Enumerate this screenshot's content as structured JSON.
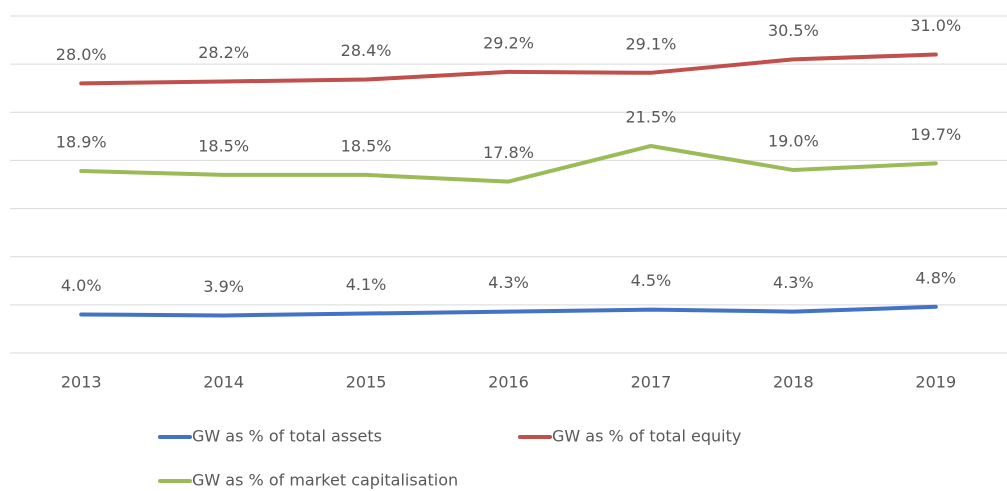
{
  "chart_data": {
    "type": "line",
    "categories": [
      "2013",
      "2014",
      "2015",
      "2016",
      "2017",
      "2018",
      "2019"
    ],
    "series": [
      {
        "name": "GW as % of total assets",
        "color": "#4472c4",
        "values": [
          4.0,
          3.9,
          4.1,
          4.3,
          4.5,
          4.3,
          4.8
        ],
        "value_labels": [
          "4.0%",
          "3.9%",
          "4.1%",
          "4.3%",
          "4.5%",
          "4.3%",
          "4.8%"
        ]
      },
      {
        "name": "GW as % of total equity",
        "color": "#c0504d",
        "values": [
          28.0,
          28.2,
          28.4,
          29.2,
          29.1,
          30.5,
          31.0
        ],
        "value_labels": [
          "28.0%",
          "28.2%",
          "28.4%",
          "29.2%",
          "29.1%",
          "30.5%",
          "31.0%"
        ]
      },
      {
        "name": "GW as % of market capitalisation",
        "color": "#9bbb59",
        "values": [
          18.9,
          18.5,
          18.5,
          17.8,
          21.5,
          19.0,
          19.7
        ],
        "value_labels": [
          "18.9%",
          "18.5%",
          "18.5%",
          "17.8%",
          "21.5%",
          "19.0%",
          "19.7%"
        ]
      }
    ],
    "ylim": [
      0,
      35
    ],
    "yticks": [
      0,
      5,
      10,
      15,
      20,
      25,
      30,
      35
    ],
    "grid": true
  }
}
